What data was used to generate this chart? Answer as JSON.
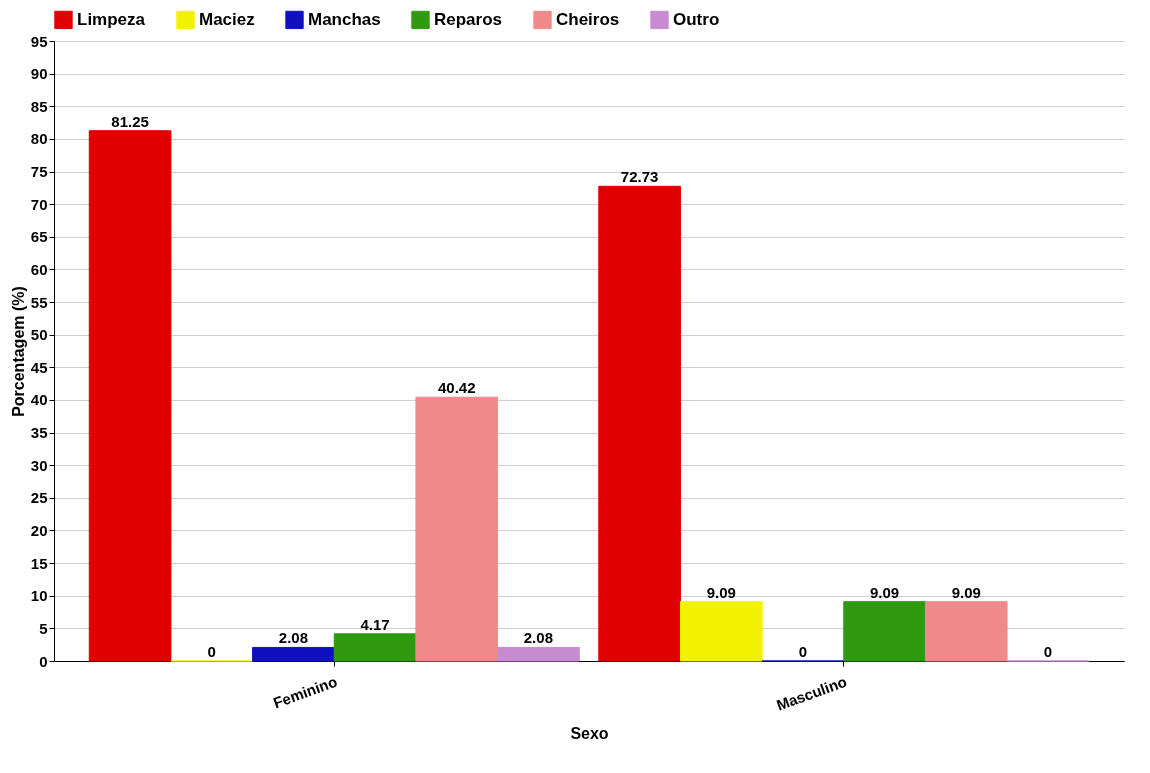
{
  "chart_data": {
    "type": "bar",
    "xlabel": "Sexo",
    "ylabel": "Porcentagem (%)",
    "categories": [
      "Feminino",
      "Masculino"
    ],
    "series": [
      {
        "name": "Limpeza",
        "color": "#e00000",
        "values": [
          81.25,
          72.73
        ]
      },
      {
        "name": "Maciez",
        "color": "#f2f200",
        "values": [
          0,
          9.09
        ]
      },
      {
        "name": "Manchas",
        "color": "#1010c0",
        "values": [
          2.08,
          0
        ]
      },
      {
        "name": "Reparos",
        "color": "#2f9a10",
        "values": [
          4.17,
          9.09
        ]
      },
      {
        "name": "Cheiros",
        "color": "#f08a8a",
        "values": [
          40.42,
          9.09
        ]
      },
      {
        "name": "Outro",
        "color": "#c88ad0",
        "values": [
          2.08,
          0
        ]
      }
    ],
    "ylim": [
      0,
      95
    ],
    "yticks": [
      0,
      5,
      10,
      15,
      20,
      25,
      30,
      35,
      40,
      45,
      50,
      55,
      60,
      65,
      70,
      75,
      80,
      85,
      90,
      95
    ],
    "grid": "y",
    "legend": "top left",
    "data_labels": true
  }
}
